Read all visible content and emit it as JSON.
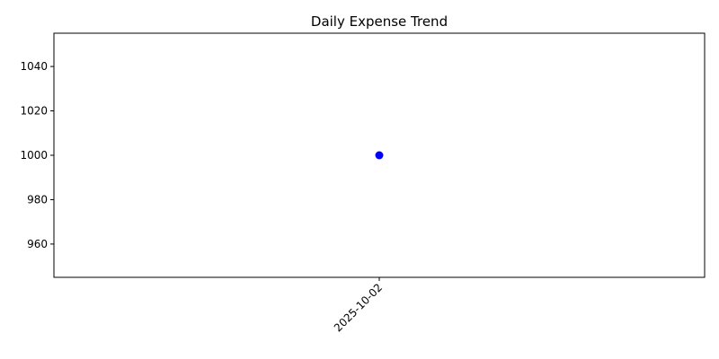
{
  "chart_data": {
    "type": "line",
    "title": "Daily Expense Trend",
    "xlabel": "",
    "ylabel": "",
    "categories": [
      "2025-10-02"
    ],
    "series": [
      {
        "values": [
          1000
        ],
        "color": "#0000ff",
        "marker": "circle"
      }
    ],
    "ylim": [
      945,
      1055
    ],
    "yticks": [
      960,
      980,
      1000,
      1020,
      1040
    ],
    "grid": false,
    "x_tick_rotation": 45
  }
}
